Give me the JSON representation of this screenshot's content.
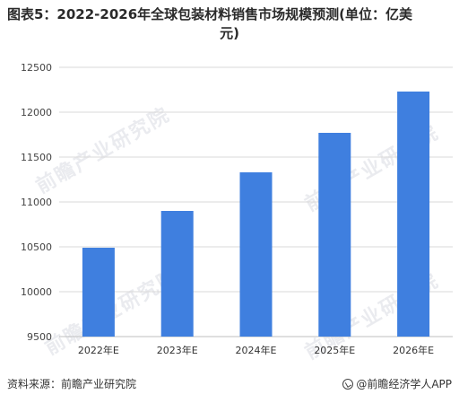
{
  "title_line1": "图表5：2022-2026年全球包装材料销售市场规模预测(单位：亿美",
  "title_line2": "元)",
  "source_text": "资料来源：前瞻产业研究院",
  "brand_text": "@前瞻经济学人APP",
  "watermark_text": "前瞻产业研究院",
  "colors": {
    "bar": "#3f7fdf",
    "grid": "#d9d9d9",
    "axis": "#bfbfbf"
  },
  "chart_data": {
    "type": "bar",
    "categories": [
      "2022年E",
      "2023年E",
      "2024年E",
      "2025年E",
      "2026年E"
    ],
    "values": [
      10490,
      10900,
      11330,
      11770,
      12230
    ],
    "ylim": [
      9500,
      12500
    ],
    "yticks": [
      "9500",
      "10000",
      "10500",
      "11000",
      "11500",
      "12000",
      "12500"
    ],
    "grid": true,
    "title": "",
    "xlabel": "",
    "ylabel": ""
  }
}
